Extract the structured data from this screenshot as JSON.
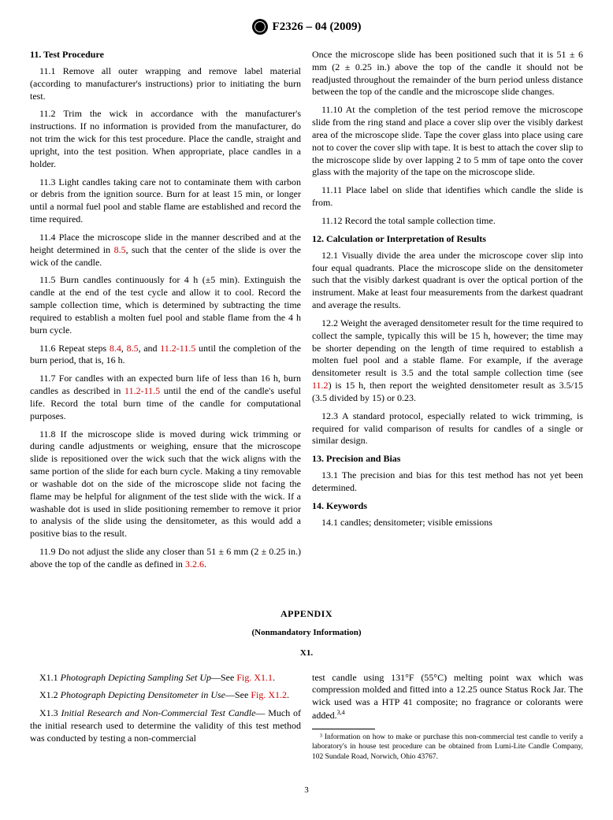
{
  "header": {
    "designation": "F2326 – 04 (2009)"
  },
  "leftCol": {
    "s11": {
      "title": "11.  Test Procedure",
      "p1": "11.1  Remove all outer wrapping and remove label material (according to manufacturer's instructions) prior to initiating the burn test.",
      "p2": "11.2  Trim the wick in accordance with the manufacturer's instructions. If no information is provided from the manufacturer, do not trim the wick for this test procedure. Place the candle, straight and upright, into the test position. When appropriate, place candles in a holder.",
      "p3": "11.3  Light candles taking care not to contaminate them with carbon or debris from the ignition source. Burn for at least 15 min, or longer until a normal fuel pool and stable flame are established and record the time required.",
      "p4a": "11.4  Place the microscope slide in the manner described and at the height determined in ",
      "p4ref": "8.5",
      "p4b": ", such that the center of the slide is over the wick of the candle.",
      "p5": "11.5  Burn candles continuously for 4 h (±5 min). Extinguish the candle at the end of the test cycle and allow it to cool. Record the sample collection time, which is determined by subtracting the time required to establish a molten fuel pool and stable flame from the 4 h burn cycle.",
      "p6a": "11.6  Repeat steps ",
      "p6r1": "8.4",
      "p6b": ", ",
      "p6r2": "8.5",
      "p6c": ", and ",
      "p6r3": "11.2-11.5",
      "p6d": " until the completion of the burn period, that is, 16 h.",
      "p7a": "11.7  For candles with an expected burn life of less than 16 h, burn candles as described in ",
      "p7r": "11.2-11.5",
      "p7b": " until the end of the candle's useful life. Record the total burn time of the candle for computational purposes.",
      "p8": "11.8  If the microscope slide is moved during wick trimming or during candle adjustments or weighing, ensure that the microscope slide is repositioned over the wick such that the wick aligns with the same portion of the slide for each burn cycle. Making a tiny removable or washable dot on the side of the microscope slide not facing the flame may be helpful for alignment of the test slide with the wick. If a washable dot is used in slide positioning remember to remove it prior to analysis of the slide using the densitometer, as this would add a positive bias to the result.",
      "p9a": "11.9  Do not adjust the slide any closer than 51 ± 6 mm (2 ± 0.25 in.) above the top of the candle as defined in ",
      "p9r": "3.2.6",
      "p9b": "."
    }
  },
  "rightCol": {
    "s11cont": {
      "p9c": "Once the microscope slide has been positioned such that it is 51 ± 6 mm (2 ± 0.25 in.) above the top of the candle it should not be readjusted throughout the remainder of the burn period unless distance between the top of the candle and the microscope slide changes.",
      "p10": "11.10  At the completion of the test period remove the microscope slide from the ring stand and place a cover slip over the visibly darkest area of the microscope slide. Tape the cover glass into place using care not to cover the cover slip with tape. It is best to attach the cover slip to the microscope slide by over lapping 2 to 5 mm of tape onto the cover glass with the majority of the tape on the microscope slide.",
      "p11": "11.11  Place label on slide that identifies which candle the slide is from.",
      "p12": "11.12  Record the total sample collection time."
    },
    "s12": {
      "title": "12.  Calculation or Interpretation of Results",
      "p1": "12.1  Visually divide the area under the microscope cover slip into four equal quadrants. Place the microscope slide on the densitometer such that the visibly darkest quadrant is over the optical portion of the instrument. Make at least four measurements from the darkest quadrant and average the results.",
      "p2a": "12.2  Weight the averaged densitometer result for the time required to collect the sample, typically this will be 15 h, however; the time may be shorter depending on the length of time required to establish a molten fuel pool and a stable flame. For example, if the average densitometer result is 3.5 and the total sample collection time (see ",
      "p2r": "11.2",
      "p2b": ") is 15 h, then report the weighted densitometer result as 3.5/15 (3.5 divided by 15) or 0.23.",
      "p3": "12.3  A standard protocol, especially related to wick trimming, is required for valid comparison of results for candles of a single or similar design."
    },
    "s13": {
      "title": "13.  Precision and Bias",
      "p1": "13.1  The precision and bias for this test method has not yet been determined."
    },
    "s14": {
      "title": "14.  Keywords",
      "p1": "14.1   candles; densitometer; visible emissions"
    }
  },
  "appendix": {
    "title": "APPENDIX",
    "sub": "(Nonmandatory Information)",
    "x1": "X1.",
    "left": {
      "p1a": "X1.1  ",
      "p1i": "Photograph Depicting Sampling Set Up",
      "p1b": "—See ",
      "p1r": "Fig. X1.1",
      "p1c": ".",
      "p2a": "X1.2  ",
      "p2i": "Photograph Depicting Densitometer in Use",
      "p2b": "—See ",
      "p2r": "Fig. X1.2",
      "p2c": ".",
      "p3a": "X1.3  ",
      "p3i": "Initial Research and Non-Commercial Test Candle",
      "p3b": "— Much of the initial research used to determine the validity of this test method was conducted by testing a non-commercial"
    },
    "right": {
      "p": "test candle using 131°F (55°C) melting point wax which was compression molded and fitted into a 12.25 ounce Status Rock Jar. The wick used was a HTP 41 composite; no fragrance or colorants were added."
    },
    "footnote": "³ Information on how to make or purchase this non-commercial test candle to verify a laboratory's in house test procedure can be obtained from Lumi-Lite Candle Company, 102 Sundale Road, Norwich, Ohio 43767."
  },
  "pageNumber": "3"
}
